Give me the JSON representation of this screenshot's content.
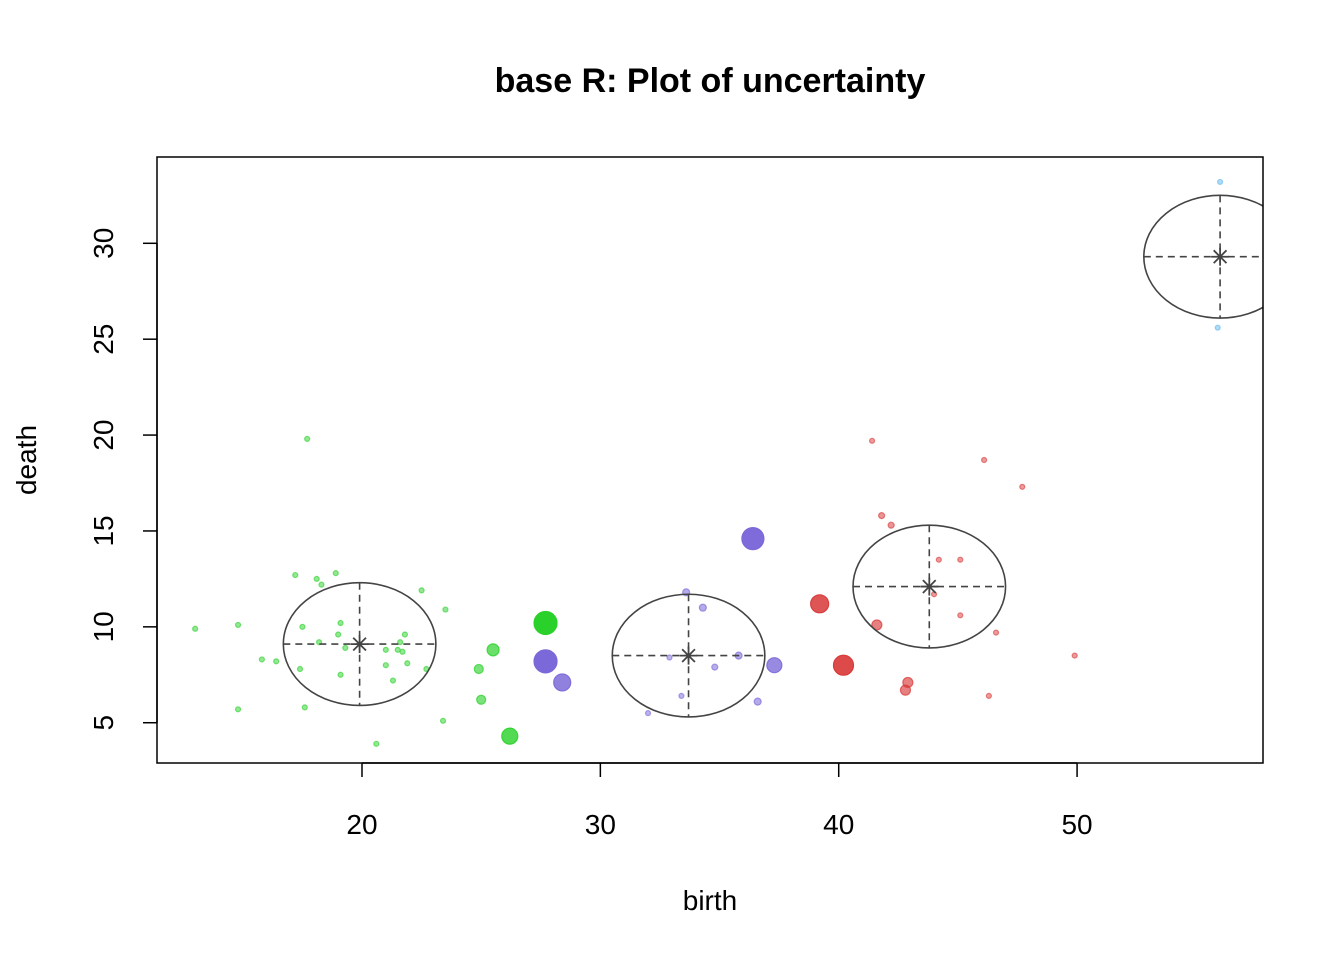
{
  "chart_data": {
    "type": "scatter",
    "title": "base R: Plot of uncertainty",
    "xlabel": "birth",
    "ylabel": "death",
    "xlim": [
      11.4,
      57.8
    ],
    "ylim": [
      2.9,
      34.5
    ],
    "x_ticks": [
      20,
      30,
      40,
      50
    ],
    "y_ticks": [
      5,
      10,
      15,
      20,
      25,
      30
    ],
    "grid": false,
    "legend": "none",
    "colors": {
      "green": "#2ad12a",
      "purple": "#7b68d9",
      "red": "#d93a3a",
      "blue": "#61b7ee",
      "ellipse": "#444444"
    },
    "clusters": [
      {
        "color": "green",
        "center": [
          19.9,
          9.1
        ],
        "radius_x": 3.2,
        "radius_y": 3.2
      },
      {
        "color": "purple",
        "center": [
          33.7,
          8.5
        ],
        "radius_x": 3.2,
        "radius_y": 3.2
      },
      {
        "color": "red",
        "center": [
          43.8,
          12.1
        ],
        "radius_x": 3.2,
        "radius_y": 3.2
      },
      {
        "color": "blue",
        "center": [
          56.0,
          29.3
        ],
        "radius_x": 3.2,
        "radius_y": 3.2
      }
    ],
    "series": [
      {
        "color": "green",
        "points": [
          [
            13.0,
            9.9,
            0.1
          ],
          [
            14.8,
            10.1,
            0.1
          ],
          [
            14.8,
            5.7,
            0.1
          ],
          [
            15.8,
            8.3,
            0.1
          ],
          [
            16.4,
            8.2,
            0.1
          ],
          [
            17.2,
            12.7,
            0.1
          ],
          [
            17.7,
            19.8,
            0.1
          ],
          [
            17.5,
            10.0,
            0.1
          ],
          [
            17.4,
            7.8,
            0.1
          ],
          [
            17.6,
            5.8,
            0.1
          ],
          [
            18.1,
            12.5,
            0.1
          ],
          [
            18.3,
            12.2,
            0.1
          ],
          [
            18.2,
            9.2,
            0.1
          ],
          [
            18.9,
            12.8,
            0.1
          ],
          [
            19.1,
            10.2,
            0.1
          ],
          [
            19.0,
            9.6,
            0.1
          ],
          [
            19.1,
            7.5,
            0.1
          ],
          [
            19.3,
            8.9,
            0.1
          ],
          [
            21.0,
            8.8,
            0.1
          ],
          [
            21.0,
            8.0,
            0.1
          ],
          [
            21.5,
            8.8,
            0.1
          ],
          [
            21.6,
            9.2,
            0.1
          ],
          [
            21.8,
            9.6,
            0.1
          ],
          [
            21.9,
            8.1,
            0.1
          ],
          [
            21.7,
            8.7,
            0.1
          ],
          [
            21.3,
            7.2,
            0.1
          ],
          [
            20.6,
            3.9,
            0.1
          ],
          [
            22.5,
            11.9,
            0.1
          ],
          [
            22.7,
            7.8,
            0.1
          ],
          [
            23.5,
            10.9,
            0.1
          ],
          [
            23.4,
            5.1,
            0.1
          ],
          [
            24.9,
            7.8,
            0.3
          ],
          [
            25.0,
            6.2,
            0.3
          ],
          [
            25.5,
            8.8,
            0.45
          ],
          [
            26.2,
            4.3,
            0.65
          ],
          [
            27.7,
            10.2,
            1.0
          ]
        ]
      },
      {
        "color": "purple",
        "points": [
          [
            27.7,
            8.2,
            1.0
          ],
          [
            28.4,
            7.1,
            0.7
          ],
          [
            36.4,
            14.6,
            0.95
          ],
          [
            37.3,
            8.0,
            0.6
          ],
          [
            33.6,
            11.8,
            0.2
          ],
          [
            34.3,
            11.0,
            0.2
          ],
          [
            35.8,
            8.5,
            0.2
          ],
          [
            36.6,
            6.1,
            0.2
          ],
          [
            34.8,
            7.9,
            0.15
          ],
          [
            32.0,
            5.5,
            0.1
          ],
          [
            33.4,
            6.4,
            0.1
          ],
          [
            32.9,
            8.4,
            0.1
          ]
        ]
      },
      {
        "color": "red",
        "points": [
          [
            39.2,
            11.2,
            0.75
          ],
          [
            40.2,
            8.0,
            0.85
          ],
          [
            41.6,
            10.1,
            0.35
          ],
          [
            42.9,
            7.1,
            0.35
          ],
          [
            42.8,
            6.7,
            0.35
          ],
          [
            41.4,
            19.7,
            0.1
          ],
          [
            41.8,
            15.8,
            0.15
          ],
          [
            42.2,
            15.3,
            0.15
          ],
          [
            44.2,
            13.5,
            0.1
          ],
          [
            45.1,
            13.5,
            0.1
          ],
          [
            44.0,
            11.7,
            0.1
          ],
          [
            45.1,
            10.6,
            0.1
          ],
          [
            46.1,
            18.7,
            0.1
          ],
          [
            46.6,
            9.7,
            0.1
          ],
          [
            47.7,
            17.3,
            0.1
          ],
          [
            46.3,
            6.4,
            0.1
          ],
          [
            49.9,
            8.5,
            0.1
          ]
        ]
      },
      {
        "color": "blue",
        "points": [
          [
            56.0,
            33.2,
            0.1
          ],
          [
            55.9,
            25.6,
            0.1
          ]
        ]
      }
    ]
  }
}
